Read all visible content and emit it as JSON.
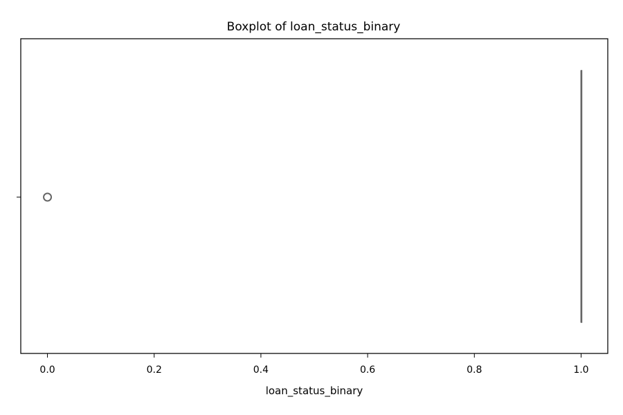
{
  "chart_data": {
    "type": "boxplot",
    "title": "Boxplot of loan_status_binary",
    "xlabel": "loan_status_binary",
    "ylabel": "",
    "orientation": "horizontal",
    "xlim": [
      -0.05,
      1.05
    ],
    "x_ticks": [
      0.0,
      0.2,
      0.4,
      0.6,
      0.8,
      1.0
    ],
    "x_tick_labels": [
      "0.0",
      "0.2",
      "0.4",
      "0.6",
      "0.8",
      "1.0"
    ],
    "y_ticks": [
      ""
    ],
    "series": [
      {
        "min": 1.0,
        "q1": 1.0,
        "median": 1.0,
        "q3": 1.0,
        "max": 1.0,
        "outliers": [
          0.0
        ]
      }
    ],
    "grid": false,
    "legend": "none",
    "colors": {
      "box_line": "#666666",
      "outlier_edge": "#666666",
      "axes": "#000000",
      "background": "#ffffff"
    }
  }
}
